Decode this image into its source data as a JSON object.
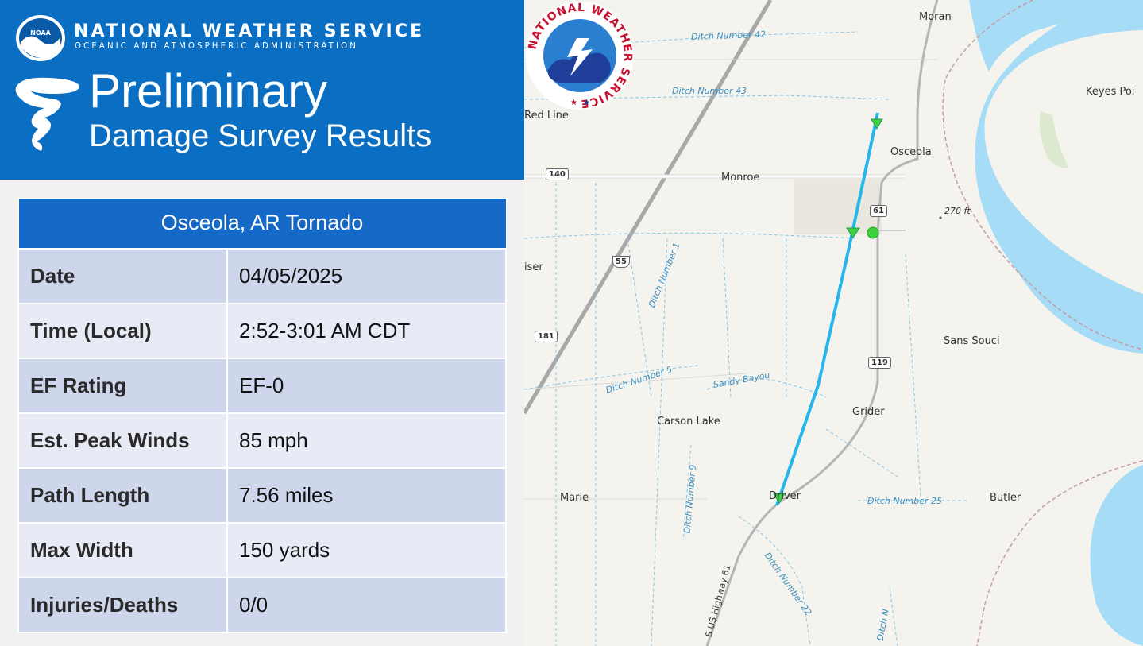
{
  "header": {
    "agency_name": "NATIONAL WEATHER SERVICE",
    "agency_subtitle": "OCEANIC AND ATMOSPHERIC ADMINISTRATION",
    "noaa_badge": "NOAA",
    "title_line1": "Preliminary",
    "title_line2": "Damage Survey Results"
  },
  "survey": {
    "event_title": "Osceola, AR Tornado",
    "rows": [
      {
        "label": "Date",
        "value": "04/05/2025"
      },
      {
        "label": "Time (Local)",
        "value": "2:52-3:01 AM CDT"
      },
      {
        "label": "EF Rating",
        "value": "EF-0"
      },
      {
        "label": "Est. Peak Winds",
        "value": "85 mph"
      },
      {
        "label": "Path Length",
        "value": "7.56 miles"
      },
      {
        "label": "Max Width",
        "value": "150 yards"
      },
      {
        "label": "Injuries/Deaths",
        "value": "0/0"
      }
    ]
  },
  "map": {
    "places": {
      "moran": "Moran",
      "keyes_point": "Keyes Poi",
      "red_line": "Red Line",
      "osceola": "Osceola",
      "monroe": "Monroe",
      "iser": "iser",
      "sans_souci": "Sans Souci",
      "grider": "Grider",
      "carson_lake": "Carson Lake",
      "marie": "Marie",
      "driver": "Driver",
      "butler": "Butler",
      "elevation": "270 ft"
    },
    "waterways": {
      "ditch42": "Ditch Number 42",
      "ditch43": "Ditch Number 43",
      "ditch1": "Ditch Number 1",
      "ditch5": "Ditch Number 5",
      "sandy_bayou": "Sandy Bayou",
      "ditch9": "Ditch Number 9",
      "ditch25": "Ditch Number 25",
      "ditch22": "Ditch Number 22",
      "ditch_partial": "Ditch N"
    },
    "roads": {
      "r140": "140",
      "r61": "61",
      "r55": "55",
      "r181": "181",
      "r119": "119",
      "highway61": "S US Highway 61"
    },
    "colors": {
      "track": "#27b6ec",
      "water": "#a6dcf5",
      "marker": "#3ed13e"
    }
  },
  "nws_logo": {
    "ring_text": "NATIONAL WEATHER SERVICE"
  }
}
